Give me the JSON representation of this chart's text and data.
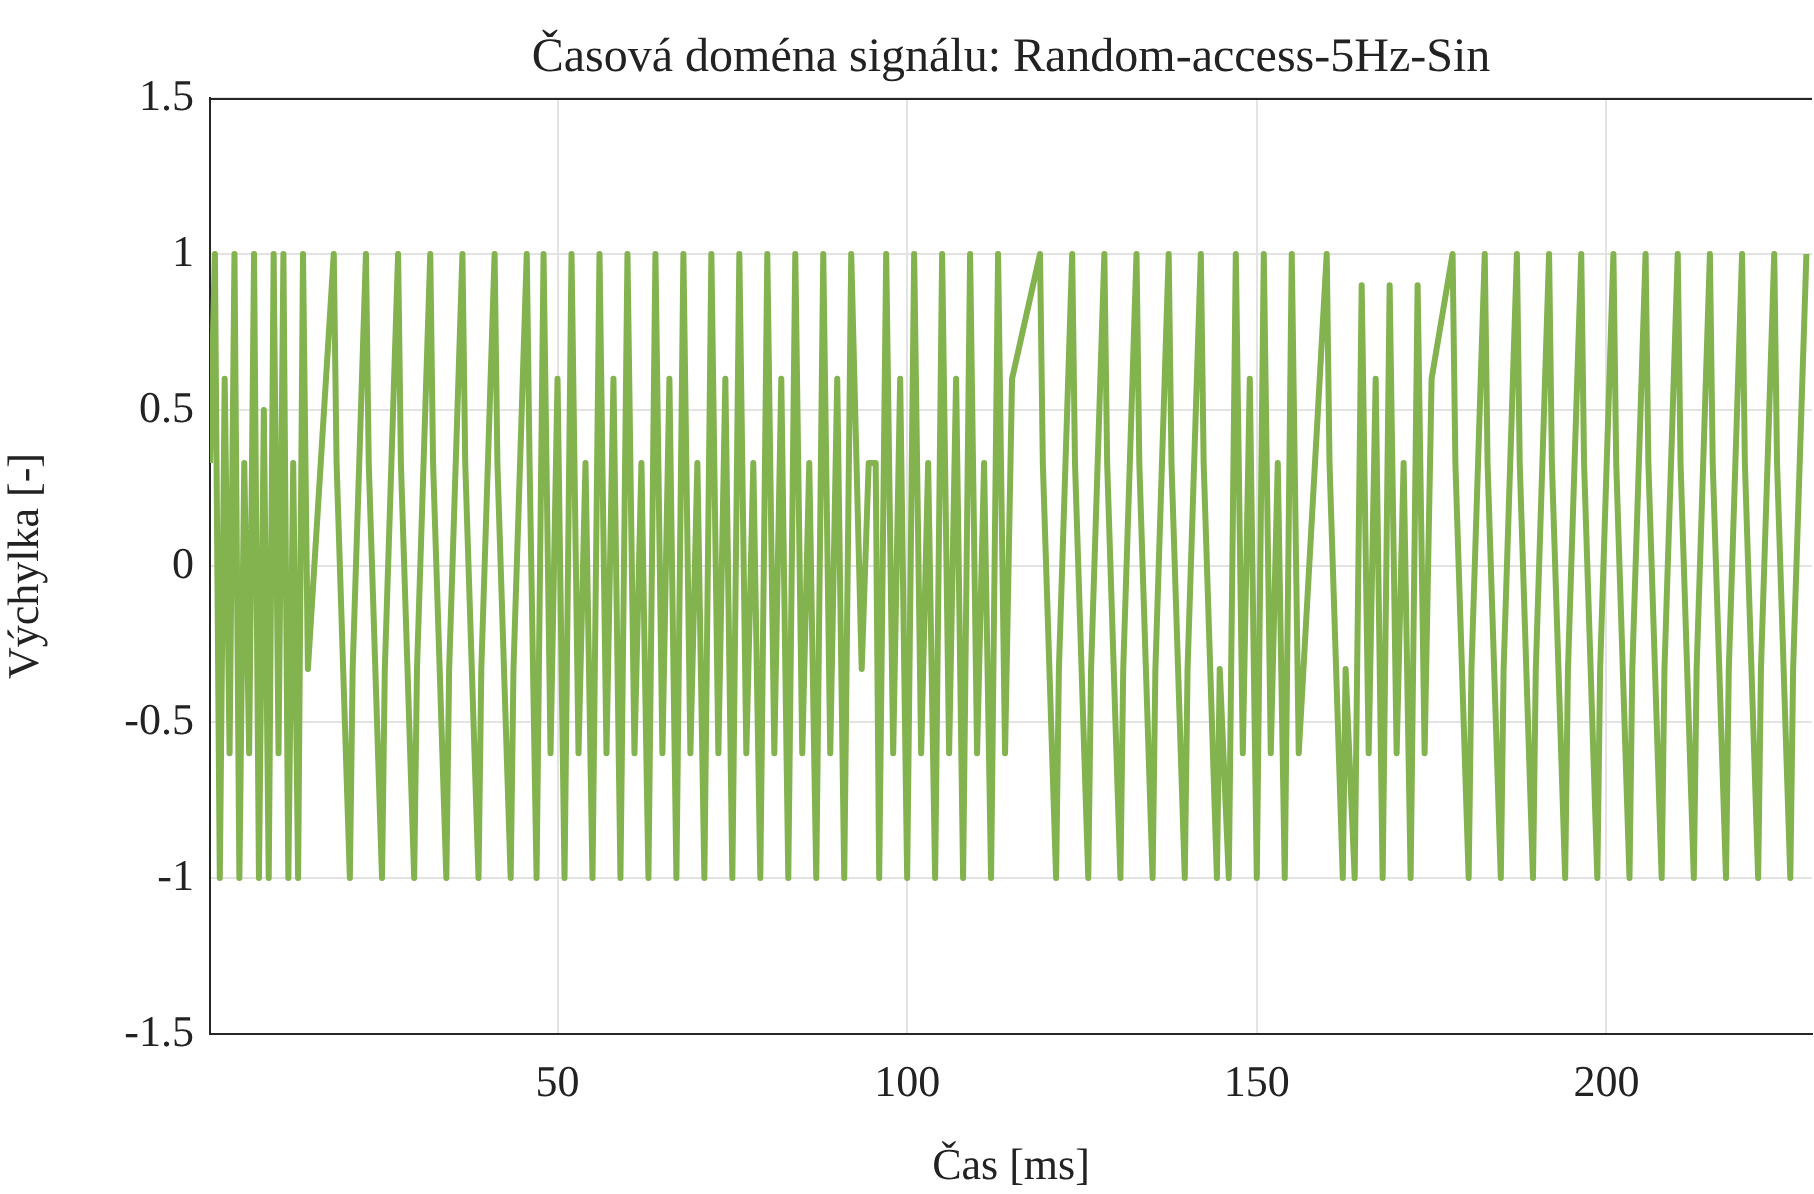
{
  "chart_data": {
    "type": "line",
    "title": "Časová doména signálu: Random-access-5Hz-Sin",
    "xlabel": "Čas [ms]",
    "ylabel": "Výchylka [-]",
    "xlim": [
      0.3,
      229.4
    ],
    "ylim": [
      -1.5,
      1.5
    ],
    "xticks": [
      50,
      100,
      150,
      200
    ],
    "yticks": [
      -1.5,
      -1,
      -0.5,
      0,
      0.5,
      1,
      1.5
    ],
    "grid": true,
    "marker": "none",
    "line_style": "solid",
    "series": [
      {
        "color": "#82b34e",
        "x": [
          0.3,
          1,
          1.7,
          2.4,
          3.1,
          3.8,
          4.5,
          5.2,
          5.9,
          6.6,
          7.3,
          8,
          8.7,
          9.4,
          10.1,
          10.8,
          11.5,
          12.2,
          12.9,
          13.6,
          14.3,
          18,
          18.4,
          20.3,
          20.7,
          22.6,
          23,
          24.9,
          25.3,
          27.2,
          27.6,
          29.5,
          29.9,
          31.8,
          32.2,
          34.1,
          34.5,
          36.4,
          36.8,
          38.7,
          39.1,
          41,
          41.4,
          43.3,
          43.7,
          45.6,
          46,
          47,
          48,
          49,
          50,
          51,
          52,
          53,
          54,
          55,
          56,
          57,
          58,
          59,
          60,
          61,
          62,
          63,
          64,
          65,
          66,
          67,
          68,
          69,
          70,
          71,
          72,
          73,
          74,
          75,
          76,
          77,
          78,
          79,
          80,
          81,
          82,
          83,
          84,
          85,
          86,
          87,
          88,
          89,
          90,
          91,
          92,
          93.5,
          94.5,
          95.5,
          96,
          97,
          98,
          99,
          100,
          101,
          102,
          103,
          104,
          105,
          106,
          107,
          108,
          109,
          110,
          111,
          112,
          113,
          114,
          115,
          119,
          119.4,
          121.3,
          121.7,
          123.6,
          124,
          125.9,
          126.3,
          128.2,
          128.6,
          130.5,
          130.9,
          132.8,
          133.2,
          135.1,
          135.5,
          137.4,
          137.8,
          139.7,
          140.1,
          142,
          142.4,
          144.3,
          144.7,
          146,
          147,
          148,
          149,
          150,
          151,
          152,
          153,
          154,
          155,
          156,
          160,
          160.4,
          162.3,
          162.7,
          164,
          165,
          166,
          167,
          168,
          169,
          170,
          171,
          172,
          173,
          174,
          175,
          178,
          178.4,
          180.3,
          180.7,
          182.6,
          183,
          184.9,
          185.3,
          187.2,
          187.6,
          189.5,
          189.9,
          191.8,
          192.2,
          194.1,
          194.5,
          196.4,
          196.8,
          198.7,
          199.1,
          201,
          201.4,
          203.3,
          203.7,
          205.6,
          206,
          207.9,
          208.3,
          210.2,
          210.6,
          212.5,
          212.9,
          214.8,
          215.2,
          217.1,
          217.5,
          219.4,
          219.8,
          221.7,
          222.1,
          224,
          224.4,
          226.3,
          226.7,
          228.6
        ],
        "values": [
          0.33,
          1,
          -1,
          0.6,
          -0.6,
          1,
          -1,
          0.33,
          -0.6,
          1,
          -1,
          0.5,
          -1,
          1,
          -0.6,
          1,
          -1,
          0.33,
          -1,
          1,
          -0.33,
          1,
          0.33,
          -1,
          -0.33,
          1,
          0.33,
          -1,
          -0.33,
          1,
          0.33,
          -1,
          -0.33,
          1,
          0.33,
          -1,
          -0.33,
          1,
          0.33,
          -1,
          -0.33,
          1,
          0.33,
          -1,
          -0.33,
          1,
          0.33,
          -1,
          1,
          -0.6,
          0.6,
          -1,
          1,
          -0.6,
          0.33,
          -1,
          1,
          -0.6,
          0.6,
          -1,
          1,
          -0.6,
          0.33,
          -1,
          1,
          -0.6,
          0.6,
          -1,
          1,
          -0.6,
          0.33,
          -1,
          1,
          -0.6,
          0.6,
          -1,
          1,
          -0.6,
          0.33,
          -1,
          1,
          -0.6,
          0.6,
          -1,
          1,
          -0.6,
          0.33,
          -1,
          1,
          -0.6,
          0.6,
          -1,
          1,
          -0.33,
          0.33,
          0.33,
          -1,
          1,
          -0.6,
          0.6,
          -1,
          1,
          -0.6,
          0.33,
          -1,
          1,
          -0.6,
          0.6,
          -1,
          1,
          -0.6,
          0.33,
          -1,
          1,
          -0.6,
          0.6,
          1,
          0.33,
          -1,
          -0.33,
          1,
          0.33,
          -1,
          -0.33,
          1,
          0.33,
          -1,
          -0.33,
          1,
          0.33,
          -1,
          -0.33,
          1,
          0.33,
          -1,
          -0.33,
          1,
          0.33,
          -1,
          -0.33,
          -1,
          1,
          -0.6,
          0.6,
          -1,
          1,
          -0.6,
          0.33,
          -1,
          1,
          -0.6,
          1,
          0.33,
          -1,
          -0.33,
          -1,
          0.9,
          -0.6,
          0.6,
          -1,
          0.9,
          -0.6,
          0.33,
          -1,
          0.9,
          -0.6,
          0.6,
          1,
          0.33,
          -1,
          -0.33,
          1,
          0.33,
          -1,
          -0.33,
          1,
          0.33,
          -1,
          -0.33,
          1,
          0.33,
          -1,
          -0.33,
          1,
          0.33,
          -1,
          -0.33,
          1,
          0.33,
          -1,
          -0.33,
          1,
          0.33,
          -1,
          -0.33,
          1,
          0.33,
          -1,
          -0.33,
          1,
          0.33,
          -1,
          -0.33,
          1,
          0.33,
          -1,
          -0.33,
          1,
          0.33,
          -1,
          -0.33,
          1
        ]
      }
    ]
  }
}
